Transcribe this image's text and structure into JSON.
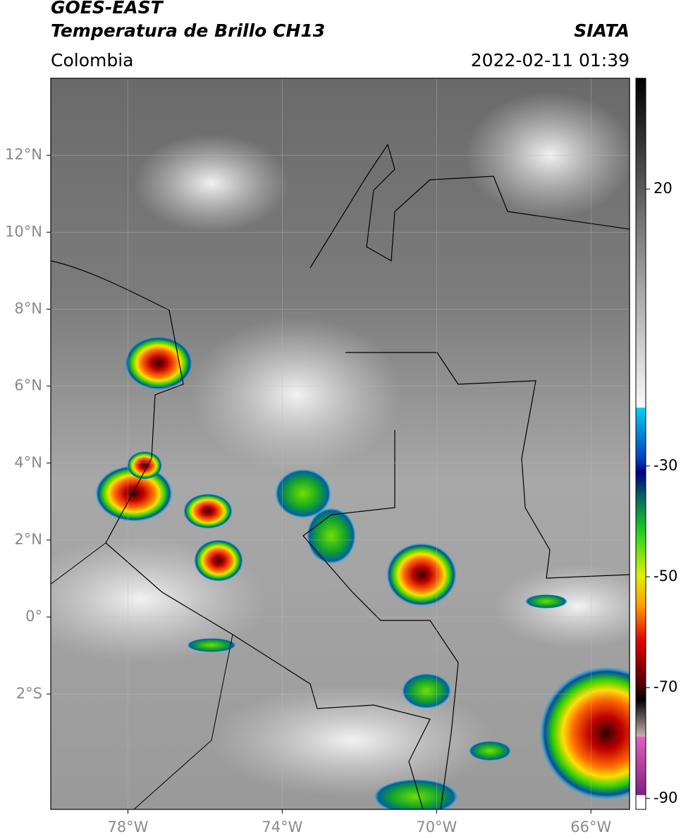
{
  "header": {
    "title": "GOES-EAST",
    "subtitle": "Temperatura de Brillo CH13",
    "source": "SIATA",
    "region": "Colombia",
    "datetime": "2022-02-11 01:39"
  },
  "map": {
    "xlim": [
      -80,
      -65
    ],
    "ylim": [
      -5,
      14
    ],
    "xticks": [
      {
        "value": -78,
        "label": "78°W"
      },
      {
        "value": -74,
        "label": "74°W"
      },
      {
        "value": -70,
        "label": "70°W"
      },
      {
        "value": -66,
        "label": "66°W"
      }
    ],
    "yticks": [
      {
        "value": 12,
        "label": "12°N"
      },
      {
        "value": 10,
        "label": "10°N"
      },
      {
        "value": 8,
        "label": "8°N"
      },
      {
        "value": 6,
        "label": "6°N"
      },
      {
        "value": 4,
        "label": "4°N"
      },
      {
        "value": 2,
        "label": "2°N"
      },
      {
        "value": 0,
        "label": "0°"
      },
      {
        "value": -2,
        "label": "2°S"
      }
    ],
    "grid": true
  },
  "colorbar": {
    "lim": [
      -92,
      40
    ],
    "ticks": [
      20,
      -30,
      -50,
      -70,
      -90
    ]
  }
}
